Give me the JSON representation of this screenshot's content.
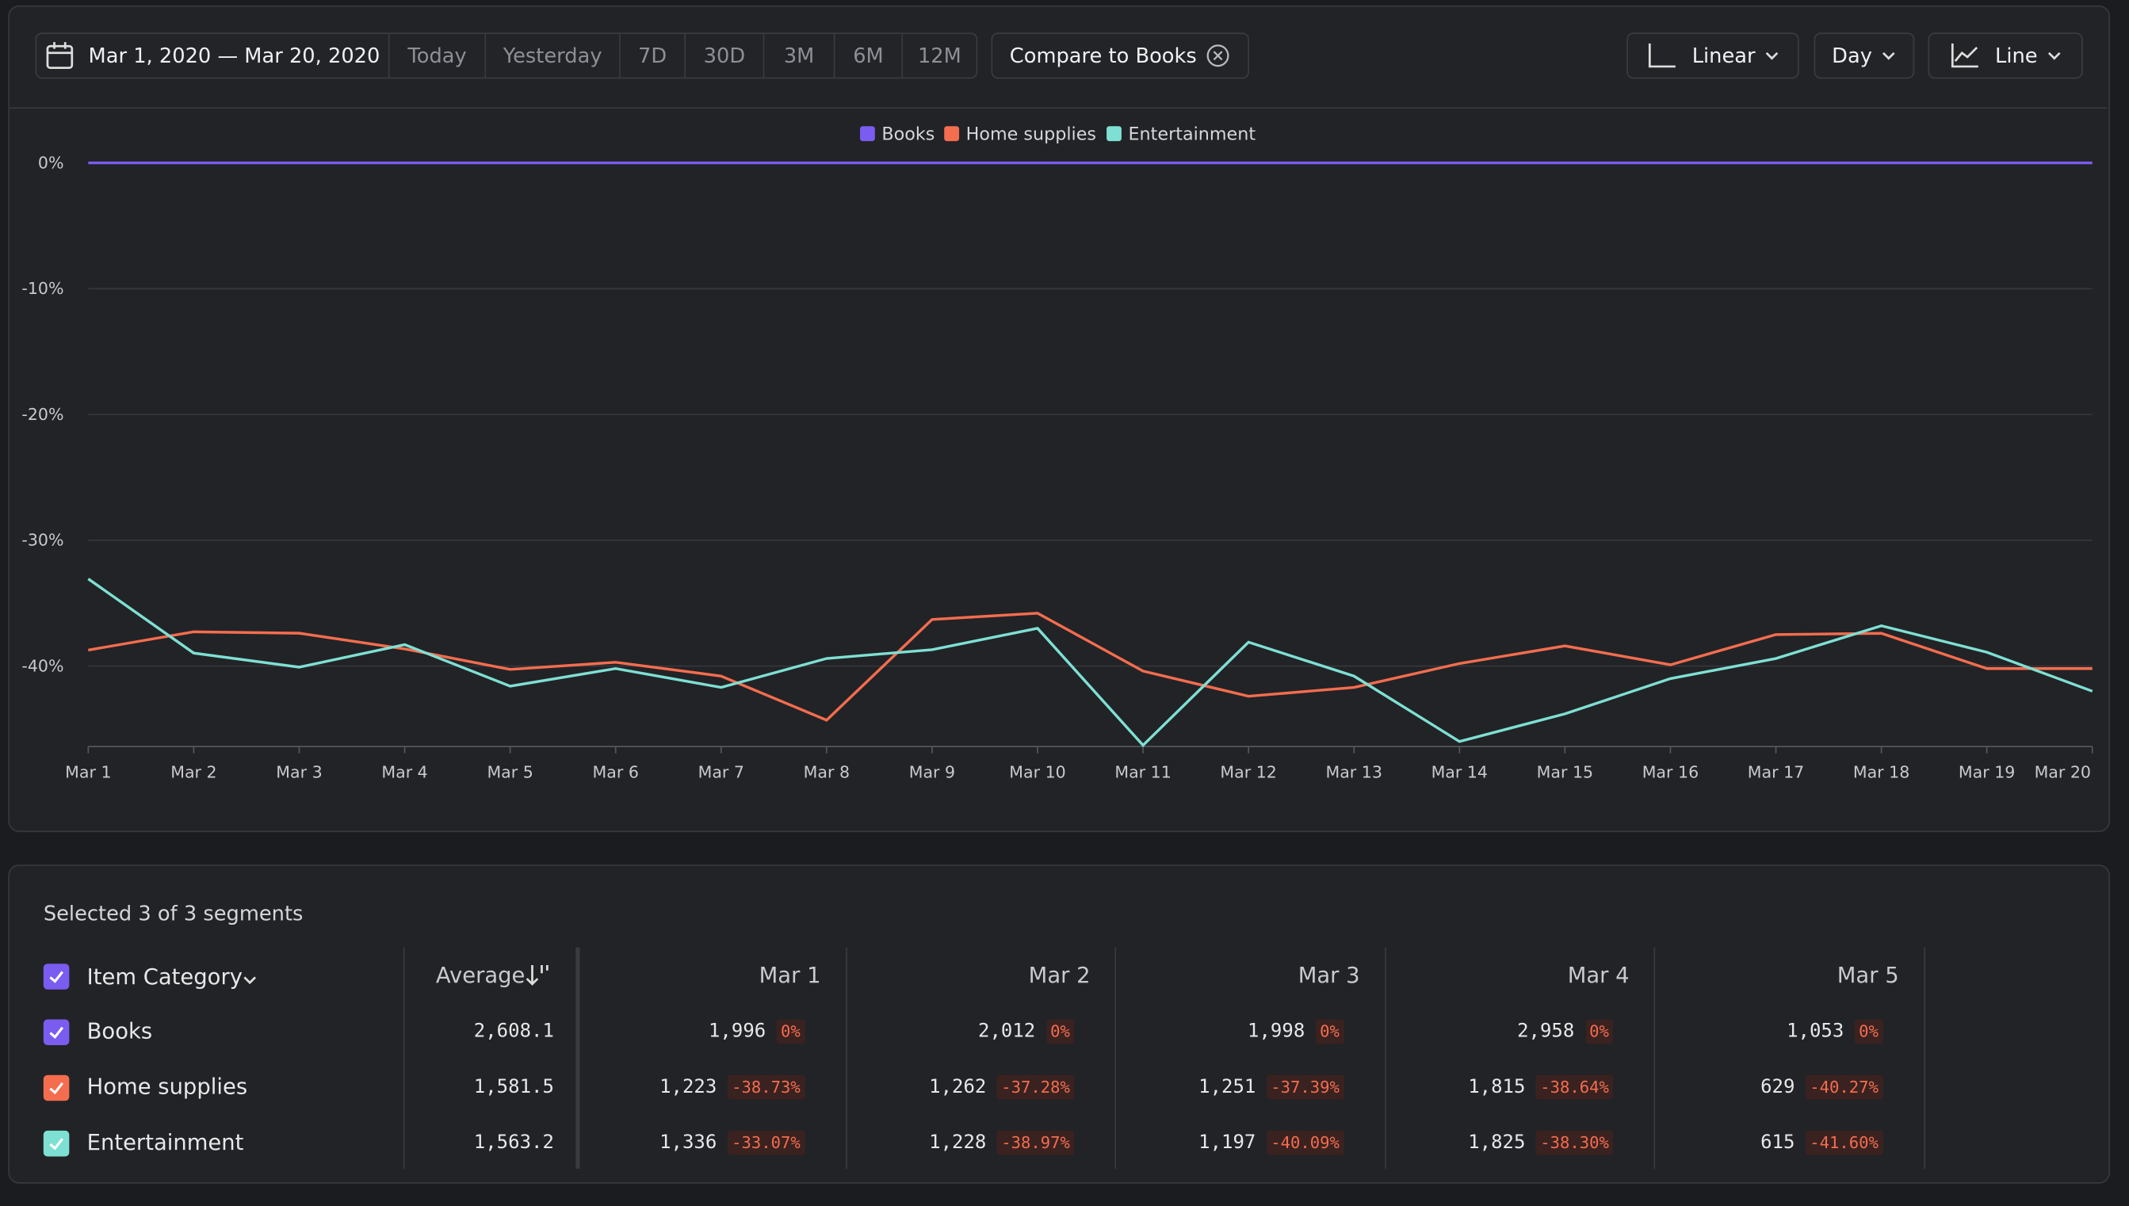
{
  "toolbar": {
    "date_range": "Mar 1, 2020 — Mar 20, 2020",
    "presets": [
      "Today",
      "Yesterday",
      "7D",
      "30D",
      "3M",
      "6M",
      "12M"
    ],
    "compare": "Compare to Books",
    "scale": "Linear",
    "interval": "Day",
    "chart_kind": "Line"
  },
  "chart_data": {
    "type": "line",
    "categories": [
      "Mar 1",
      "Mar 2",
      "Mar 3",
      "Mar 4",
      "Mar 5",
      "Mar 6",
      "Mar 7",
      "Mar 8",
      "Mar 9",
      "Mar 10",
      "Mar 11",
      "Mar 12",
      "Mar 13",
      "Mar 14",
      "Mar 15",
      "Mar 16",
      "Mar 17",
      "Mar 18",
      "Mar 19",
      "Mar 20"
    ],
    "series": [
      {
        "name": "Books",
        "color": "#7a5cf0",
        "values": [
          0,
          0,
          0,
          0,
          0,
          0,
          0,
          0,
          0,
          0,
          0,
          0,
          0,
          0,
          0,
          0,
          0,
          0,
          0,
          0
        ]
      },
      {
        "name": "Home supplies",
        "color": "#f46d4f",
        "values": [
          -38.73,
          -37.28,
          -37.39,
          -38.64,
          -40.27,
          -39.7,
          -40.8,
          -44.3,
          -36.3,
          -35.8,
          -40.4,
          -42.4,
          -41.7,
          -39.8,
          -38.4,
          -39.9,
          -37.5,
          -37.4,
          -40.2,
          -40.2
        ]
      },
      {
        "name": "Entertainment",
        "color": "#7ee0d3",
        "values": [
          -33.07,
          -38.97,
          -40.09,
          -38.3,
          -41.6,
          -40.2,
          -41.7,
          -39.4,
          -38.7,
          -37.0,
          -46.3,
          -38.1,
          -40.8,
          -46.0,
          -43.8,
          -41.0,
          -39.4,
          -36.8,
          -38.9,
          -42.0
        ]
      }
    ],
    "ylim": [
      -46.4,
      0
    ],
    "yticks": [
      {
        "value": 0,
        "label": "0%"
      },
      {
        "value": -10,
        "label": "-10%"
      },
      {
        "value": -20,
        "label": "-20%"
      },
      {
        "value": -30,
        "label": "-30%"
      },
      {
        "value": -40,
        "label": "-40%"
      }
    ],
    "grid": true,
    "legend": "top"
  },
  "table": {
    "caption": "Selected 3 of 3 segments",
    "group_header": "Item Category",
    "average_header": "Average",
    "columns": [
      "Mar 1",
      "Mar 2",
      "Mar 3",
      "Mar 4",
      "Mar 5"
    ],
    "rows": [
      {
        "name": "Books",
        "average": "2,608.1",
        "cells": [
          [
            "1,996",
            "0%"
          ],
          [
            "2,012",
            "0%"
          ],
          [
            "1,998",
            "0%"
          ],
          [
            "2,958",
            "0%"
          ],
          [
            "1,053",
            "0%"
          ]
        ]
      },
      {
        "name": "Home supplies",
        "average": "1,581.5",
        "cells": [
          [
            "1,223",
            "-38.73%"
          ],
          [
            "1,262",
            "-37.28%"
          ],
          [
            "1,251",
            "-37.39%"
          ],
          [
            "1,815",
            "-38.64%"
          ],
          [
            "629",
            "-40.27%"
          ]
        ]
      },
      {
        "name": "Entertainment",
        "average": "1,563.2",
        "cells": [
          [
            "1,336",
            "-33.07%"
          ],
          [
            "1,228",
            "-38.97%"
          ],
          [
            "1,197",
            "-40.09%"
          ],
          [
            "1,825",
            "-38.30%"
          ],
          [
            "615",
            "-41.60%"
          ]
        ]
      }
    ]
  }
}
